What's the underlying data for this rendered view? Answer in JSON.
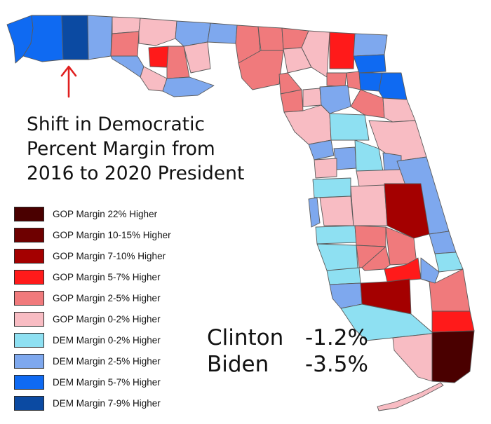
{
  "title_lines": [
    "Shift in Democratic",
    "Percent Margin from",
    "2016 to 2020 President"
  ],
  "legend": [
    {
      "label": "GOP Margin 22% Higher",
      "color": "#4a0000"
    },
    {
      "label": "GOP Margin 10-15% Higher",
      "color": "#6e0000"
    },
    {
      "label": "GOP Margin 7-10% Higher",
      "color": "#a40000"
    },
    {
      "label": "GOP Margin 5-7% Higher",
      "color": "#ff1a1a"
    },
    {
      "label": "GOP Margin 2-5% Higher",
      "color": "#f07a7c"
    },
    {
      "label": "GOP Margin 0-2% Higher",
      "color": "#f8bcc3"
    },
    {
      "label": "DEM Margin 0-2% Higher",
      "color": "#8ee0f2"
    },
    {
      "label": "DEM Margin 2-5% Higher",
      "color": "#7ea8ee"
    },
    {
      "label": "DEM Margin 5-7% Higher",
      "color": "#0f6af2"
    },
    {
      "label": "DEM Margin 7-9% Higher",
      "color": "#0b4aa2"
    }
  ],
  "results": [
    {
      "name": "Clinton",
      "value": "-1.2%"
    },
    {
      "name": "Biden",
      "value": "-3.5%"
    }
  ],
  "arrow_color": "#e02020",
  "border_color": "#5a5a5a"
}
